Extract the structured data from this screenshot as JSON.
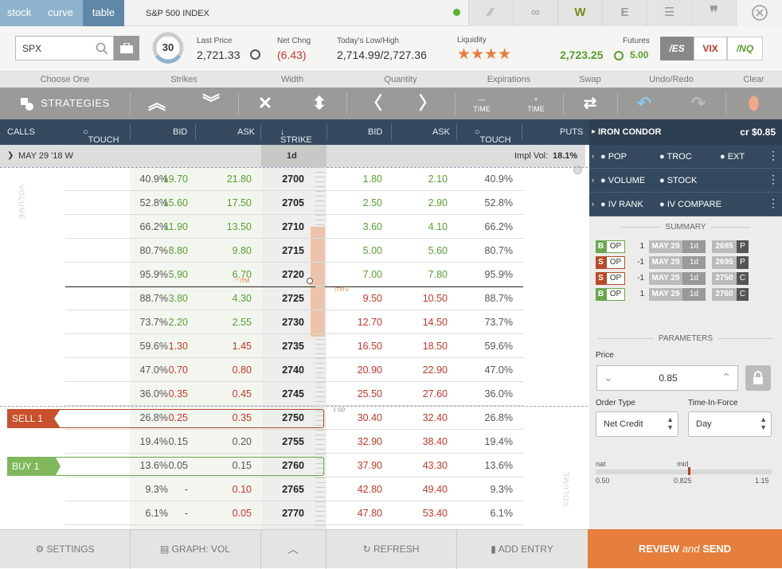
{
  "header": {
    "view_tabs": [
      "stock",
      "curve",
      "table"
    ],
    "symbol_title": "S&P 500 INDEX",
    "right_icons": [
      "magic-wand-icon",
      "link-icon",
      "W",
      "E",
      "list-icon",
      "quote-icon",
      "close-icon"
    ]
  },
  "quote": {
    "symbol": "SPX",
    "days": "30",
    "last_price_label": "Last Price",
    "last_price": "2,721.33",
    "net_chng_label": "Net Chng",
    "net_chng": "(6.43)",
    "low_high_label": "Today's Low/High",
    "low_high": "2,714.99/2,727.36",
    "liquidity_label": "Liquidity",
    "liquidity_stars": 4,
    "futures_label": "Futures",
    "futures_value": "2,723.25",
    "futures_change": "5.00",
    "future_buttons": [
      "/ES",
      "VIX",
      "/NQ"
    ]
  },
  "toolbar_labels": [
    "Choose One",
    "Strikes",
    "Width",
    "Quantity",
    "Expirations",
    "Swap",
    "Undo/Redo",
    "Clear"
  ],
  "toolbar": {
    "strategies": "STRATEGIES",
    "time_minus": "TIME",
    "time_plus": "TIME"
  },
  "table_header": {
    "calls": "CALLS",
    "touch_left": "TOUCH",
    "bid_left": "BID",
    "ask_left": "ASK",
    "strike": "STRIKE",
    "bid_right": "BID",
    "ask_right": "ASK",
    "touch_right": "TOUCH",
    "puts": "PUTS"
  },
  "expiration": {
    "label": "MAY 29 '18 W",
    "days": "1d",
    "impl_vol_label": "Impl Vol:",
    "impl_vol": "18.1%"
  },
  "markers": {
    "itm_call": "ITM",
    "itm_put": "ITM",
    "one_sd": "1 SD",
    "volume_left": "VOLUME",
    "volume_right": "VOLUME"
  },
  "rows": [
    {
      "touch_c": "40.9%",
      "bid_c": "19.70",
      "ask_c": "21.80",
      "strike": "2700",
      "bid_p": "1.80",
      "ask_p": "2.10",
      "touch_p": "40.9%"
    },
    {
      "touch_c": "52.8%",
      "bid_c": "15.60",
      "ask_c": "17.50",
      "strike": "2705",
      "bid_p": "2.50",
      "ask_p": "2.90",
      "touch_p": "52.8%"
    },
    {
      "touch_c": "66.2%",
      "bid_c": "11.90",
      "ask_c": "13.50",
      "strike": "2710",
      "bid_p": "3.60",
      "ask_p": "4.10",
      "touch_p": "66.2%"
    },
    {
      "touch_c": "80.7%",
      "bid_c": "8.80",
      "ask_c": "9.80",
      "strike": "2715",
      "bid_p": "5.00",
      "ask_p": "5.60",
      "touch_p": "80.7%"
    },
    {
      "touch_c": "95.9%",
      "bid_c": "5.90",
      "ask_c": "6.70",
      "strike": "2720",
      "bid_p": "7.00",
      "ask_p": "7.80",
      "touch_p": "95.9%"
    },
    {
      "touch_c": "88.7%",
      "bid_c": "3.80",
      "ask_c": "4.30",
      "strike": "2725",
      "bid_p": "9.50",
      "ask_p": "10.50",
      "touch_p": "88.7%"
    },
    {
      "touch_c": "73.7%",
      "bid_c": "2.20",
      "ask_c": "2.55",
      "strike": "2730",
      "bid_p": "12.70",
      "ask_p": "14.50",
      "touch_p": "73.7%"
    },
    {
      "touch_c": "59.6%",
      "bid_c": "1.30",
      "ask_c": "1.45",
      "strike": "2735",
      "bid_p": "16.50",
      "ask_p": "18.50",
      "touch_p": "59.6%"
    },
    {
      "touch_c": "47.0%",
      "bid_c": "0.70",
      "ask_c": "0.80",
      "strike": "2740",
      "bid_p": "20.90",
      "ask_p": "22.90",
      "touch_p": "47.0%"
    },
    {
      "touch_c": "36.0%",
      "bid_c": "0.35",
      "ask_c": "0.45",
      "strike": "2745",
      "bid_p": "25.50",
      "ask_p": "27.60",
      "touch_p": "36.0%"
    },
    {
      "touch_c": "26.8%",
      "bid_c": "0.25",
      "ask_c": "0.35",
      "strike": "2750",
      "bid_p": "30.40",
      "ask_p": "32.40",
      "touch_p": "26.8%"
    },
    {
      "touch_c": "19.4%",
      "bid_c": "0.15",
      "ask_c": "0.20",
      "strike": "2755",
      "bid_p": "32.90",
      "ask_p": "38.40",
      "touch_p": "19.4%"
    },
    {
      "touch_c": "13.6%",
      "bid_c": "0.05",
      "ask_c": "0.15",
      "strike": "2760",
      "bid_p": "37.90",
      "ask_p": "43.30",
      "touch_p": "13.6%"
    },
    {
      "touch_c": "9.3%",
      "bid_c": "-",
      "ask_c": "0.10",
      "strike": "2765",
      "bid_p": "42.80",
      "ask_p": "49.40",
      "touch_p": "9.3%"
    },
    {
      "touch_c": "6.1%",
      "bid_c": "-",
      "ask_c": "0.05",
      "strike": "2770",
      "bid_p": "47.80",
      "ask_p": "53.40",
      "touch_p": "6.1%"
    }
  ],
  "legs_tags": {
    "sell": "SELL 1",
    "buy": "BUY 1"
  },
  "panel": {
    "strategy": "IRON CONDOR",
    "credit": "cr $0.85",
    "metrics": [
      [
        "POP",
        "TROC",
        "EXT"
      ],
      [
        "VOLUME",
        "STOCK"
      ],
      [
        "IV RANK",
        "IV COMPARE"
      ]
    ],
    "summary_label": "SUMMARY",
    "legs": [
      {
        "side": "B",
        "type": "OP",
        "qty": "1",
        "exp": "MAY 29",
        "dte": "1d",
        "strike": "2685",
        "cp": "P"
      },
      {
        "side": "S",
        "type": "OP",
        "qty": "-1",
        "exp": "MAY 29",
        "dte": "1d",
        "strike": "2695",
        "cp": "P"
      },
      {
        "side": "S",
        "type": "OP",
        "qty": "-1",
        "exp": "MAY 29",
        "dte": "1d",
        "strike": "2750",
        "cp": "C"
      },
      {
        "side": "B",
        "type": "OP",
        "qty": "1",
        "exp": "MAY 29",
        "dte": "1d",
        "strike": "2760",
        "cp": "C"
      }
    ],
    "parameters_label": "PARAMETERS",
    "price_label": "Price",
    "price_value": "0.85",
    "order_type_label": "Order Type",
    "order_type_value": "Net Credit",
    "tif_label": "Time-In-Force",
    "tif_value": "Day",
    "nat_label": "nat",
    "mid_label": "mid",
    "nat_value": "0.50",
    "mid_value": "0.825",
    "far_value": "1.15"
  },
  "bottom": {
    "settings": "SETTINGS",
    "graph": "GRAPH: VOL",
    "refresh": "REFRESH",
    "add_entry": "ADD ENTRY",
    "review_prefix": "REVIEW",
    "review_and": "and",
    "review_suffix": "SEND"
  },
  "colors": {
    "accent_orange": "#e67e3c",
    "up_green": "#5a9e2f",
    "down_red": "#c0392b",
    "navy": "#34495e"
  }
}
